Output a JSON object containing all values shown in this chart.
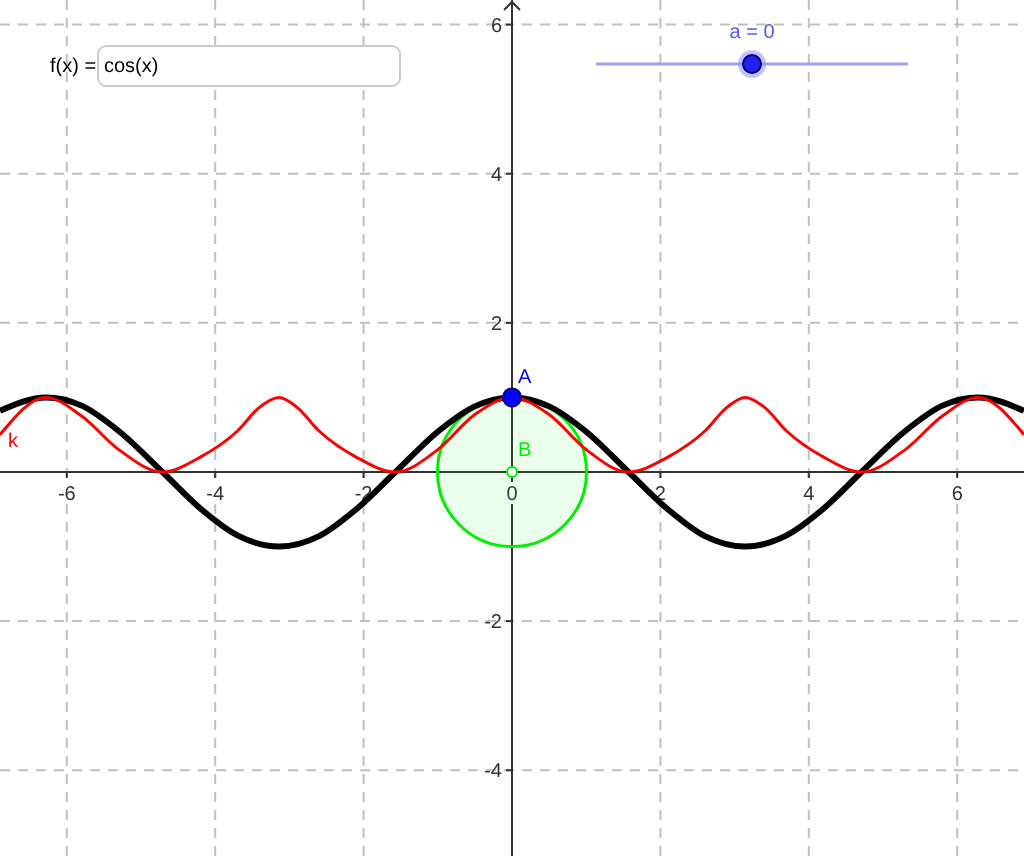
{
  "chart_data": {
    "type": "line",
    "xlim": [
      -6.9,
      6.9
    ],
    "ylim": [
      -5.15,
      6.33
    ],
    "xticks": [
      -6,
      -4,
      -2,
      0,
      2,
      4,
      6
    ],
    "yticks": [
      -4,
      -2,
      2,
      4,
      6
    ],
    "grid": true,
    "line_style": "solid",
    "annotations": [
      "f(x) =",
      "cos(x)",
      "a = 0"
    ],
    "series": [
      {
        "color": "#000000",
        "x": [
          -6.9,
          -6.28,
          -5.8,
          -5.3,
          -4.71,
          -4.2,
          -3.7,
          -3.14,
          -2.6,
          -2.1,
          -1.57,
          -1.0,
          -0.5,
          0,
          0.5,
          1.0,
          1.57,
          2.1,
          2.6,
          3.14,
          3.7,
          4.2,
          4.71,
          5.3,
          5.8,
          6.28,
          6.9
        ],
        "values": [
          0.82,
          1,
          0.89,
          0.55,
          0,
          -0.49,
          -0.85,
          -1,
          -0.86,
          -0.5,
          0,
          0.54,
          0.88,
          1,
          0.88,
          0.54,
          0,
          -0.5,
          -0.86,
          -1,
          -0.85,
          -0.49,
          0,
          0.55,
          0.89,
          1,
          0.82
        ]
      },
      {
        "name": "k",
        "color": "#ff0000",
        "x": [
          -6.9,
          -6.28,
          -5.8,
          -5.3,
          -4.71,
          -4.2,
          -3.7,
          -3.4,
          -3.14,
          -2.9,
          -2.6,
          -2.1,
          -1.57,
          -1.0,
          -0.5,
          0,
          0.5,
          1.0,
          1.57,
          2.1,
          2.6,
          2.9,
          3.14,
          3.4,
          3.7,
          4.2,
          4.71,
          5.3,
          5.8,
          6.28,
          6.9
        ],
        "values": [
          0.5,
          1,
          0.75,
          0.3,
          0,
          0.2,
          0.55,
          0.87,
          1,
          0.87,
          0.55,
          0.2,
          0,
          0.3,
          0.77,
          1,
          0.77,
          0.3,
          0,
          0.2,
          0.55,
          0.87,
          1,
          0.87,
          0.55,
          0.2,
          0,
          0.3,
          0.75,
          1,
          0.5
        ]
      },
      {
        "type": "scatter",
        "name": "A",
        "color": "#0000ff",
        "x": [
          0
        ],
        "values": [
          1
        ],
        "marker": "circle"
      },
      {
        "type": "scatter",
        "name": "B",
        "color": "#00ee00",
        "x": [
          0
        ],
        "values": [
          0
        ],
        "marker": "circle"
      }
    ]
  }
}
